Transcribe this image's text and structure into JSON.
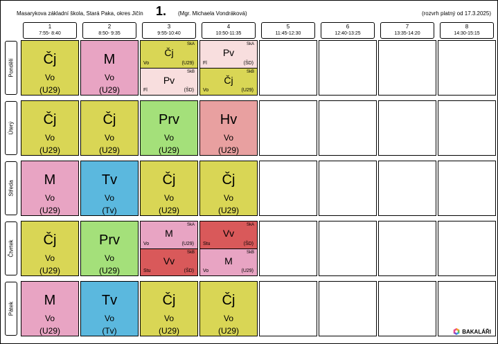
{
  "header": {
    "school": "Masarykova základní škola, Stará Paka, okres Jičín",
    "class_name": "1.",
    "teacher": "(Mgr. Michaela Vondráková)",
    "valid_from": "(rozvrh platný od 17.3.2025)"
  },
  "periods": [
    {
      "num": "1",
      "time": "7:55- 8:40"
    },
    {
      "num": "2",
      "time": "8:50- 9:35"
    },
    {
      "num": "3",
      "time": "9:55-10:40"
    },
    {
      "num": "4",
      "time": "10:50-11:35"
    },
    {
      "num": "5",
      "time": "11:45-12:30"
    },
    {
      "num": "6",
      "time": "12:40-13:25"
    },
    {
      "num": "7",
      "time": "13:35-14:20"
    },
    {
      "num": "8",
      "time": "14:30-15:15"
    }
  ],
  "days": [
    "Pondělí",
    "Úterý",
    "Středa",
    "Čtvrtek",
    "Pátek"
  ],
  "colors": {
    "cj": "#d9d655",
    "m": "#e8a4c3",
    "prv": "#a4e07a",
    "hv": "#e8a0a0",
    "tv": "#5bb8de",
    "pv": "#f8dede",
    "vv": "#d9595a"
  },
  "schedule": [
    [
      {
        "type": "full",
        "subject": "Čj",
        "teacher": "Vo",
        "room": "(U29)",
        "color": "cj"
      },
      {
        "type": "full",
        "subject": "M",
        "teacher": "Vo",
        "room": "(U29)",
        "color": "m"
      },
      {
        "type": "split",
        "parts": [
          {
            "group": "SkA",
            "subject": "Čj",
            "teacher": "Vo",
            "room": "(U29)",
            "color": "cj"
          },
          {
            "group": "SkB",
            "subject": "Pv",
            "teacher": "Fl",
            "room": "(ŠD)",
            "color": "pv"
          }
        ]
      },
      {
        "type": "split",
        "parts": [
          {
            "group": "SkA",
            "subject": "Pv",
            "teacher": "Fl",
            "room": "(ŠD)",
            "color": "pv"
          },
          {
            "group": "SkB",
            "subject": "Čj",
            "teacher": "Vo",
            "room": "(U29)",
            "color": "cj"
          }
        ]
      }
    ],
    [
      {
        "type": "full",
        "subject": "Čj",
        "teacher": "Vo",
        "room": "(U29)",
        "color": "cj"
      },
      {
        "type": "full",
        "subject": "Čj",
        "teacher": "Vo",
        "room": "(U29)",
        "color": "cj"
      },
      {
        "type": "full",
        "subject": "Prv",
        "teacher": "Vo",
        "room": "(U29)",
        "color": "prv"
      },
      {
        "type": "full",
        "subject": "Hv",
        "teacher": "Vo",
        "room": "(U29)",
        "color": "hv"
      }
    ],
    [
      {
        "type": "full",
        "subject": "M",
        "teacher": "Vo",
        "room": "(U29)",
        "color": "m"
      },
      {
        "type": "full",
        "subject": "Tv",
        "teacher": "Vo",
        "room": "(Tv)",
        "color": "tv"
      },
      {
        "type": "full",
        "subject": "Čj",
        "teacher": "Vo",
        "room": "(U29)",
        "color": "cj"
      },
      {
        "type": "full",
        "subject": "Čj",
        "teacher": "Vo",
        "room": "(U29)",
        "color": "cj"
      }
    ],
    [
      {
        "type": "full",
        "subject": "Čj",
        "teacher": "Vo",
        "room": "(U29)",
        "color": "cj"
      },
      {
        "type": "full",
        "subject": "Prv",
        "teacher": "Vo",
        "room": "(U29)",
        "color": "prv"
      },
      {
        "type": "split",
        "parts": [
          {
            "group": "SkA",
            "subject": "M",
            "teacher": "Vo",
            "room": "(U29)",
            "color": "m"
          },
          {
            "group": "SkB",
            "subject": "Vv",
            "teacher": "Stu",
            "room": "(ŠD)",
            "color": "vv"
          }
        ]
      },
      {
        "type": "split",
        "parts": [
          {
            "group": "SkA",
            "subject": "Vv",
            "teacher": "Stu",
            "room": "(ŠD)",
            "color": "vv"
          },
          {
            "group": "SkB",
            "subject": "M",
            "teacher": "Vo",
            "room": "(U29)",
            "color": "m"
          }
        ]
      }
    ],
    [
      {
        "type": "full",
        "subject": "M",
        "teacher": "Vo",
        "room": "(U29)",
        "color": "m"
      },
      {
        "type": "full",
        "subject": "Tv",
        "teacher": "Vo",
        "room": "(Tv)",
        "color": "tv"
      },
      {
        "type": "full",
        "subject": "Čj",
        "teacher": "Vo",
        "room": "(U29)",
        "color": "cj"
      },
      {
        "type": "full",
        "subject": "Čj",
        "teacher": "Vo",
        "room": "(U29)",
        "color": "cj"
      }
    ]
  ],
  "logo": {
    "text": "BAKALÁŘI",
    "icon": "bakalari-logo-icon"
  }
}
